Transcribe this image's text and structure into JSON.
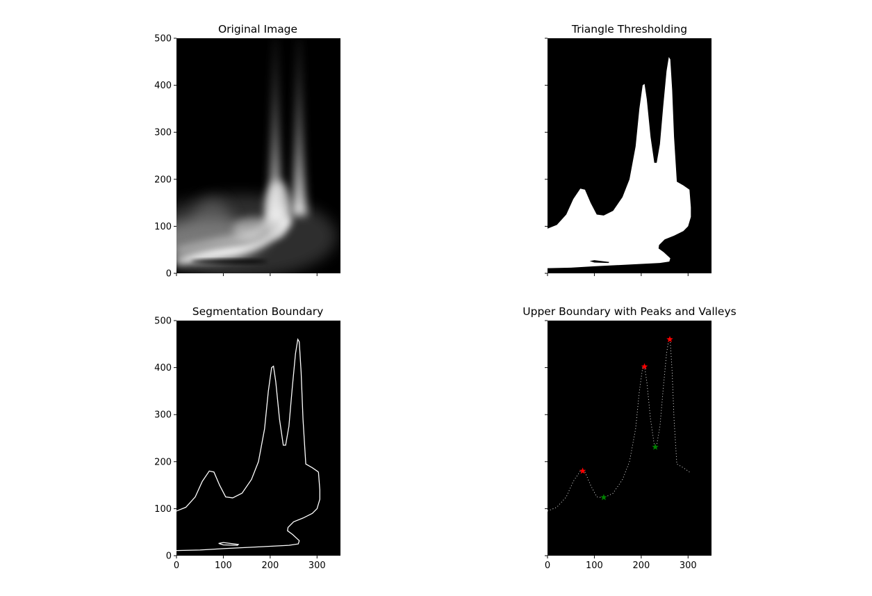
{
  "chart_data": [
    {
      "type": "image",
      "title": "Original Image",
      "xlim": [
        0,
        350
      ],
      "ylim": [
        0,
        500
      ],
      "x_ticks": [],
      "y_ticks": [
        "0",
        "100",
        "200",
        "300",
        "400",
        "500"
      ],
      "colormap": "gray",
      "description_values": {
        "bright_band_y_at_x0": 35,
        "peaks_x": [
          75,
          207,
          261
        ]
      }
    },
    {
      "type": "image",
      "title": "Triangle Thresholding",
      "xlim": [
        0,
        350
      ],
      "ylim": [
        0,
        500
      ],
      "x_ticks": [],
      "y_ticks": [],
      "colormap": "binary"
    },
    {
      "type": "line",
      "title": "Segmentation Boundary",
      "xlim": [
        0,
        350
      ],
      "ylim": [
        0,
        500
      ],
      "x_ticks": [
        "0",
        "100",
        "200",
        "300"
      ],
      "y_ticks": [
        "0",
        "100",
        "200",
        "300",
        "400",
        "500"
      ],
      "upper_boundary": {
        "x": [
          0,
          20,
          40,
          55,
          70,
          80,
          92,
          105,
          120,
          140,
          160,
          175,
          188,
          196,
          203,
          207,
          212,
          220,
          228,
          233,
          240,
          247,
          254,
          259,
          262,
          266,
          270,
          276,
          290,
          303
        ],
        "y": [
          95,
          103,
          125,
          158,
          180,
          178,
          150,
          125,
          123,
          133,
          162,
          200,
          270,
          350,
          400,
          403,
          370,
          290,
          235,
          235,
          275,
          355,
          430,
          460,
          455,
          390,
          290,
          195,
          187,
          178
        ]
      },
      "right_lower_boundary": {
        "x": [
          303,
          306,
          306,
          300,
          290,
          270,
          250,
          238,
          237,
          248,
          262,
          260,
          240,
          200,
          100,
          50,
          0
        ],
        "y": [
          178,
          140,
          120,
          100,
          90,
          80,
          72,
          60,
          53,
          45,
          32,
          25,
          22,
          20,
          15,
          12,
          11
        ]
      },
      "small_loop": {
        "x": [
          90,
          100,
          132,
          130,
          100
        ],
        "y": [
          26,
          28,
          24,
          22,
          23
        ]
      }
    },
    {
      "type": "scatter",
      "title": "Upper Boundary with Peaks and Valleys",
      "xlim": [
        0,
        350
      ],
      "ylim": [
        0,
        500
      ],
      "x_ticks": [
        "0",
        "100",
        "200",
        "300"
      ],
      "y_ticks": [],
      "peaks": {
        "x": [
          75,
          207,
          261
        ],
        "y": [
          180,
          402,
          460
        ],
        "color": "#ff0000"
      },
      "valleys": {
        "x": [
          120,
          230
        ],
        "y": [
          124,
          231
        ],
        "color": "#008000"
      }
    }
  ]
}
